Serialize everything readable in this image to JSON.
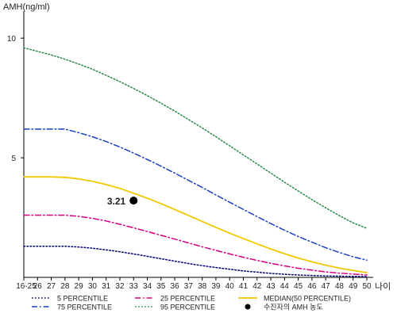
{
  "chart_data": {
    "type": "line",
    "title": "",
    "ylabel": "AMH(ng/ml)",
    "xlabel": "나이",
    "ylim": [
      0,
      11
    ],
    "y_ticks": [
      5,
      10
    ],
    "categories": [
      "16-25",
      "26",
      "27",
      "28",
      "29",
      "30",
      "31",
      "32",
      "33",
      "34",
      "35",
      "36",
      "37",
      "38",
      "39",
      "40",
      "41",
      "42",
      "43",
      "44",
      "45",
      "46",
      "47",
      "48",
      "49",
      "50"
    ],
    "legend_position": "bottom",
    "series": [
      {
        "name": "5 PERCENTILE",
        "color": "#000080",
        "dash": "dotted",
        "values": [
          1.3,
          1.3,
          1.3,
          1.3,
          1.27,
          1.22,
          1.15,
          1.07,
          0.98,
          0.88,
          0.78,
          0.68,
          0.58,
          0.49,
          0.41,
          0.34,
          0.27,
          0.22,
          0.17,
          0.13,
          0.1,
          0.08,
          0.06,
          0.05,
          0.04,
          0.03
        ]
      },
      {
        "name": "25 PERCENTILE",
        "color": "#d6007f",
        "dash": "dashdot",
        "values": [
          2.6,
          2.6,
          2.6,
          2.6,
          2.55,
          2.47,
          2.36,
          2.22,
          2.07,
          1.92,
          1.76,
          1.6,
          1.44,
          1.28,
          1.13,
          0.98,
          0.84,
          0.71,
          0.59,
          0.48,
          0.38,
          0.3,
          0.23,
          0.18,
          0.14,
          0.1
        ]
      },
      {
        "name": "MEDIAN(50 PERCENTILE)",
        "color": "#f0c800",
        "dash": "solid",
        "values": [
          4.2,
          4.2,
          4.2,
          4.18,
          4.12,
          4.02,
          3.88,
          3.72,
          3.52,
          3.31,
          3.08,
          2.84,
          2.59,
          2.34,
          2.09,
          1.85,
          1.62,
          1.4,
          1.19,
          0.99,
          0.81,
          0.65,
          0.51,
          0.39,
          0.29,
          0.2
        ]
      },
      {
        "name": "75 PERCENTILE",
        "color": "#1a3fbf",
        "dash": "dashdot",
        "values": [
          6.2,
          6.2,
          6.2,
          6.2,
          6.05,
          5.88,
          5.68,
          5.45,
          5.2,
          4.93,
          4.65,
          4.36,
          4.06,
          3.76,
          3.45,
          3.14,
          2.84,
          2.54,
          2.25,
          1.97,
          1.71,
          1.47,
          1.24,
          1.04,
          0.86,
          0.72
        ]
      },
      {
        "name": "95 PERCENTILE",
        "color": "#2a8a4a",
        "dash": "dotted",
        "values": [
          9.6,
          9.45,
          9.3,
          9.12,
          8.92,
          8.7,
          8.45,
          8.18,
          7.9,
          7.6,
          7.28,
          6.95,
          6.6,
          6.25,
          5.88,
          5.5,
          5.12,
          4.74,
          4.36,
          3.98,
          3.61,
          3.25,
          2.91,
          2.58,
          2.28,
          2.05
        ]
      }
    ],
    "patient_point": {
      "x": "33",
      "y": 3.21,
      "label": "3.21",
      "name": "수진자의 AMH 농도",
      "color": "#000000"
    }
  }
}
